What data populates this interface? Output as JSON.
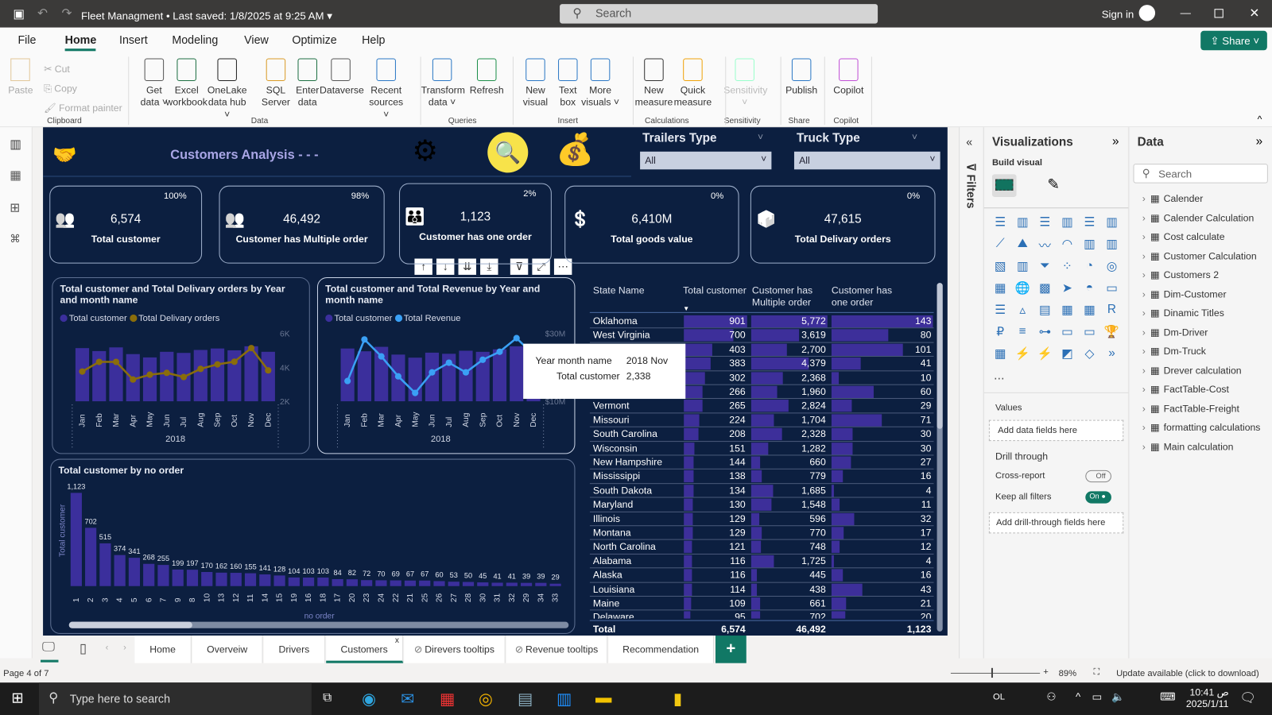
{
  "titlebar": {
    "title": "Fleet Managment",
    "saved": "Last saved: 1/8/2025 at 9:25 AM",
    "search": "Search",
    "signin": "Sign in"
  },
  "menu": [
    "File",
    "Home",
    "Insert",
    "Modeling",
    "View",
    "Optimize",
    "Help"
  ],
  "share": "Share",
  "ribbon": {
    "clipboard": {
      "paste": "Paste",
      "cut": "Cut",
      "copy": "Copy",
      "format": "Format painter",
      "group": "Clipboard"
    },
    "buttons": [
      {
        "l1": "Get",
        "l2": "data ˅",
        "x": 172
      },
      {
        "l1": "Excel",
        "l2": "workbook",
        "x": 212
      },
      {
        "l1": "OneLake",
        "l2": "data hub ˅",
        "x": 262
      },
      {
        "l1": "SQL",
        "l2": "Server",
        "x": 322
      },
      {
        "l1": "Enter",
        "l2": "data",
        "x": 361
      },
      {
        "l1": "Dataverse",
        "l2": "",
        "x": 402
      },
      {
        "l1": "Recent",
        "l2": "sources ˅",
        "x": 458
      },
      {
        "l1": "Transform",
        "l2": "data ˅",
        "x": 527
      },
      {
        "l1": "Refresh",
        "l2": "",
        "x": 582
      },
      {
        "l1": "New",
        "l2": "visual",
        "x": 642
      },
      {
        "l1": "Text",
        "l2": "box",
        "x": 682
      },
      {
        "l1": "More",
        "l2": "visuals ˅",
        "x": 722
      },
      {
        "l1": "New",
        "l2": "measure",
        "x": 788
      },
      {
        "l1": "Quick",
        "l2": "measure",
        "x": 836
      },
      {
        "l1": "Sensitivity",
        "l2": "˅",
        "x": 900
      },
      {
        "l1": "Publish",
        "l2": "",
        "x": 970
      },
      {
        "l1": "Copilot",
        "l2": "",
        "x": 1028
      }
    ],
    "groups": [
      {
        "name": "Data",
        "x": 310
      },
      {
        "name": "Queries",
        "x": 560
      },
      {
        "name": "Insert",
        "x": 690
      },
      {
        "name": "Calculations",
        "x": 812
      },
      {
        "name": "Sensitivity",
        "x": 905
      },
      {
        "name": "Share",
        "x": 975
      },
      {
        "name": "Copilot",
        "x": 1033
      }
    ]
  },
  "report": {
    "title": "Customers Analysis - - -",
    "slicers": [
      {
        "label": "Trailers Type",
        "value": "All"
      },
      {
        "label": "Truck Type",
        "value": "All"
      }
    ],
    "kpis": [
      {
        "value": "6,574",
        "label": "Total customer",
        "pct": "100%",
        "icon": "people-icon"
      },
      {
        "value": "46,492",
        "label": "Customer has Multiple order",
        "pct": "98%",
        "icon": "people-icon"
      },
      {
        "value": "1,123",
        "label": "Customer has one order",
        "pct": "2%",
        "icon": "family-icon"
      },
      {
        "value": "6,410M",
        "label": "Total goods value",
        "pct": "0%",
        "icon": "money-growth-icon"
      },
      {
        "value": "47,615",
        "label": "Total Delivary orders",
        "pct": "0%",
        "icon": "box-icon"
      }
    ],
    "tooltip": {
      "k1": "Year month name",
      "v1": "2018 Nov",
      "k2": "Total customer",
      "v2": "2,338"
    }
  },
  "chart_data": [
    {
      "type": "bar+line",
      "title": "Total customer and Total Delivary orders by Year and month name",
      "categories": [
        "Jan",
        "Feb",
        "Mar",
        "Apr",
        "May",
        "Jun",
        "Jul",
        "Aug",
        "Sep",
        "Oct",
        "Nov",
        "Dec"
      ],
      "xgroup": "2018",
      "series": [
        {
          "name": "Total customer",
          "type": "bar",
          "color": "#3b2f9c",
          "values": [
            577,
            545,
            585,
            512,
            476,
            537,
            525,
            557,
            573,
            553,
            597,
            537
          ]
        },
        {
          "name": "Total Delivary orders",
          "type": "line",
          "color": "#8a6d0b",
          "values": [
            3790,
            4370,
            4370,
            3310,
            3600,
            3710,
            3460,
            3950,
            4220,
            4380,
            5200,
            3860
          ]
        }
      ],
      "y2_ticks": [
        "6K",
        "4K",
        "2K"
      ],
      "y2lim": [
        2000,
        6000
      ]
    },
    {
      "type": "bar+line",
      "title": "Total customer and Total Revenue by Year and month name",
      "categories": [
        "Jan",
        "Feb",
        "Mar",
        "Apr",
        "May",
        "Jun",
        "Jul",
        "Aug",
        "Sep",
        "Oct",
        "Nov",
        "Dec"
      ],
      "xgroup": "2018",
      "series": [
        {
          "name": "Total customer",
          "type": "bar",
          "color": "#3b2f9c",
          "values": [
            2243,
            2125,
            2314,
            1984,
            1854,
            2066,
            2019,
            2149,
            2102,
            2208,
            2338,
            2102
          ]
        },
        {
          "name": "Total Revenue",
          "type": "line",
          "color": "#3aa0f5",
          "values": [
            16.1,
            28.6,
            23.5,
            17.5,
            12.5,
            18.7,
            21.6,
            18.7,
            22.5,
            24.9,
            29.0,
            24.0
          ]
        }
      ],
      "y2_ticks": [
        "$30M",
        "$10M"
      ],
      "y2lim": [
        10,
        30
      ]
    },
    {
      "type": "bar",
      "title": "Total customer by no order",
      "xlabel": "no order",
      "ylabel": "Total customer",
      "categories": [
        "1",
        "2",
        "3",
        "4",
        "5",
        "6",
        "7",
        "9",
        "8",
        "10",
        "13",
        "12",
        "11",
        "14",
        "15",
        "19",
        "16",
        "18",
        "17",
        "20",
        "23",
        "24",
        "22",
        "21",
        "25",
        "26",
        "27",
        "28",
        "30",
        "31",
        "32",
        "29",
        "34",
        "33"
      ],
      "values": [
        1123,
        702,
        515,
        374,
        341,
        268,
        255,
        199,
        197,
        170,
        162,
        160,
        155,
        141,
        128,
        104,
        103,
        103,
        84,
        82,
        72,
        70,
        69,
        67,
        67,
        60,
        53,
        50,
        45,
        41,
        41,
        39,
        39,
        29
      ],
      "value_labels": [
        "1,123",
        "702",
        "515",
        "374",
        "341",
        "268",
        "255",
        "199",
        "197",
        "170",
        "162",
        "160",
        "155",
        "141",
        "128",
        "104",
        "103",
        "103",
        "84",
        "82",
        "72",
        "70",
        "69",
        "67",
        "67",
        "60",
        "53",
        "50",
        "45",
        "41",
        "41",
        "39",
        "39",
        "29"
      ],
      "color": "#3b2f9c"
    }
  ],
  "table": {
    "headers": [
      "State Name",
      "Total customer",
      "Customer has Multiple order",
      "Customer has one order"
    ],
    "rows": [
      [
        "Oklahoma",
        901,
        5772,
        143
      ],
      [
        "West Virginia",
        700,
        3619,
        80
      ],
      [
        "",
        403,
        2700,
        101
      ],
      [
        "",
        383,
        4379,
        41
      ],
      [
        "",
        302,
        2368,
        10
      ],
      [
        "",
        266,
        1960,
        60
      ],
      [
        "Vermont",
        265,
        2824,
        29
      ],
      [
        "Missouri",
        224,
        1704,
        71
      ],
      [
        "South Carolina",
        208,
        2328,
        30
      ],
      [
        "Wisconsin",
        151,
        1282,
        30
      ],
      [
        "New Hampshire",
        144,
        660,
        27
      ],
      [
        "Mississippi",
        138,
        779,
        16
      ],
      [
        "South Dakota",
        134,
        1685,
        4
      ],
      [
        "Maryland",
        130,
        1548,
        11
      ],
      [
        "Illinois",
        129,
        596,
        32
      ],
      [
        "Montana",
        129,
        770,
        17
      ],
      [
        "North Carolina",
        121,
        748,
        12
      ],
      [
        "Alabama",
        116,
        1725,
        4
      ],
      [
        "Alaska",
        116,
        445,
        16
      ],
      [
        "Louisiana",
        114,
        438,
        43
      ],
      [
        "Maine",
        109,
        661,
        21
      ],
      [
        "Delaware",
        95,
        702,
        20
      ]
    ],
    "total": [
      "Total",
      "6,574",
      "46,492",
      "1,123"
    ],
    "bar_color": "#3d2f9a"
  },
  "viz": {
    "title": "Visualizations",
    "build": "Build visual",
    "values": "Values",
    "add_fields": "Add data fields here",
    "drill": "Drill through",
    "cross": "Cross-report",
    "cross_state": "Off",
    "keep": "Keep all filters",
    "keep_state": "On",
    "add_drill": "Add drill-through fields here",
    "more": "..."
  },
  "filters_label": "Filters",
  "data": {
    "title": "Data",
    "search": "Search",
    "tables": [
      "Calender",
      "Calender Calculation",
      "Cost calculate",
      "Customer Calculation",
      "Customers 2",
      "Dim-Customer",
      "Dinamic Titles",
      "Dm-Driver",
      "Dm-Truck",
      "Drever calculation",
      "FactTable-Cost",
      "FactTable-Freight",
      "formatting calculations",
      "Main calculation"
    ]
  },
  "pages": [
    "Home",
    "Overveiw",
    "Drivers",
    "Customers",
    "Direvers tooltips",
    "Revenue tooltips",
    "Recommendation"
  ],
  "active_page": "Customers",
  "status": {
    "page": "Page 4 of 7",
    "zoom": "89%",
    "update": "Update available (click to download)"
  },
  "taskbar": {
    "search": "Type here to search",
    "lang": "OL",
    "time": "10:41 ص",
    "date": "2025/1/11"
  }
}
